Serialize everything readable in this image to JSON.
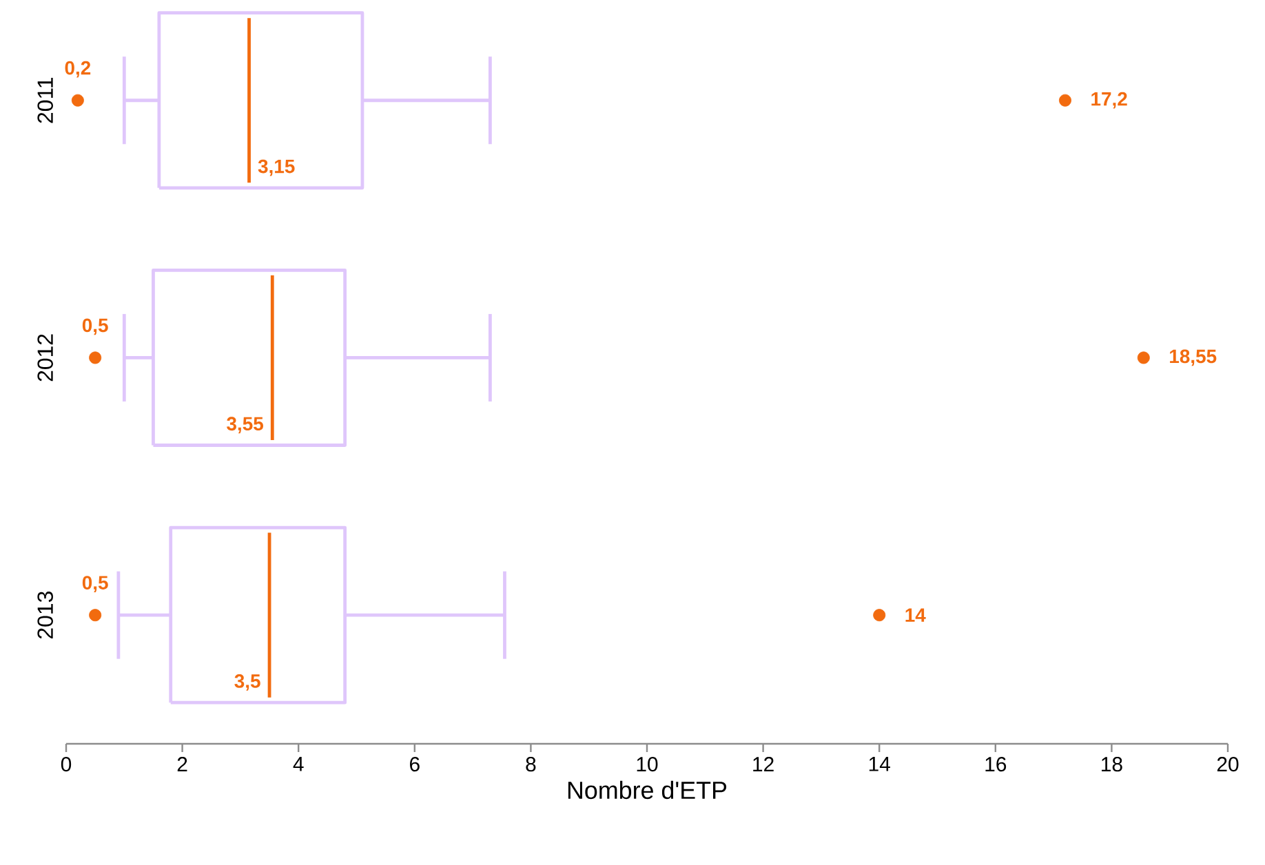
{
  "chart_data": {
    "type": "box",
    "orientation": "horizontal",
    "categories": [
      "2011",
      "2012",
      "2013"
    ],
    "xlabel": "Nombre d'ETP",
    "xlim": [
      0,
      20
    ],
    "xticks": [
      0,
      2,
      4,
      6,
      8,
      10,
      12,
      14,
      16,
      18,
      20
    ],
    "marker": "circle",
    "series": [
      {
        "color": "#dfc6fb",
        "boxes": [
          {
            "low": 1.0,
            "q1": 1.6,
            "median": 3.15,
            "q3": 5.1,
            "high": 7.3,
            "outliers": [
              0.2,
              17.2
            ]
          },
          {
            "low": 1.0,
            "q1": 1.5,
            "median": 3.55,
            "q3": 4.8,
            "high": 7.3,
            "outliers": [
              0.5,
              18.55
            ]
          },
          {
            "low": 0.9,
            "q1": 1.8,
            "median": 3.5,
            "q3": 4.8,
            "high": 7.55,
            "outliers": [
              0.5,
              14
            ]
          }
        ]
      }
    ],
    "annotations": [
      "0,2",
      "3,15",
      "17,2",
      "0,5",
      "3,55",
      "18,55",
      "0,5",
      "3,5",
      "14"
    ]
  }
}
